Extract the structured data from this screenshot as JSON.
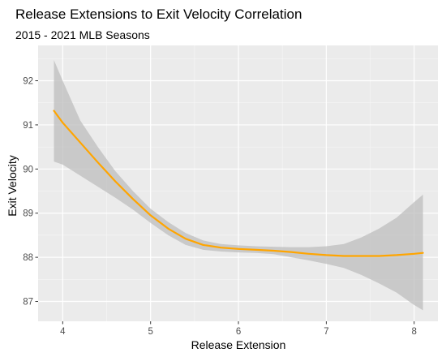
{
  "chart_data": {
    "type": "line",
    "title": "Release Extensions to Exit Velocity Correlation",
    "subtitle": "2015 - 2021 MLB Seasons",
    "xlabel": "Release Extension",
    "ylabel": "Exit Velocity",
    "xlim": [
      3.72,
      8.27
    ],
    "ylim": [
      86.55,
      92.8
    ],
    "x_ticks": [
      4,
      5,
      6,
      7,
      8
    ],
    "y_ticks": [
      87,
      88,
      89,
      90,
      91,
      92
    ],
    "x_minor_ticks": [
      4.5,
      5.5,
      6.5,
      7.5
    ],
    "y_minor_ticks": [
      87.5,
      88.5,
      89.5,
      90.5,
      91.5,
      92.5
    ],
    "grid": true,
    "series": [
      {
        "kind": "smooth-fit-with-confidence-band",
        "color": "#FFA500",
        "band_color": "#BEBEBE",
        "x": [
          3.9,
          4.0,
          4.2,
          4.4,
          4.6,
          4.8,
          5.0,
          5.2,
          5.4,
          5.6,
          5.8,
          6.0,
          6.2,
          6.4,
          6.6,
          6.8,
          7.0,
          7.2,
          7.4,
          7.6,
          7.8,
          8.0,
          8.1
        ],
        "y": [
          91.32,
          91.05,
          90.6,
          90.15,
          89.72,
          89.32,
          88.95,
          88.65,
          88.42,
          88.28,
          88.22,
          88.19,
          88.17,
          88.15,
          88.12,
          88.08,
          88.05,
          88.03,
          88.03,
          88.03,
          88.05,
          88.08,
          88.1
        ],
        "upper": [
          92.47,
          92.0,
          91.1,
          90.5,
          89.95,
          89.5,
          89.1,
          88.8,
          88.55,
          88.38,
          88.3,
          88.27,
          88.25,
          88.24,
          88.23,
          88.23,
          88.25,
          88.3,
          88.45,
          88.65,
          88.9,
          89.25,
          89.42
        ],
        "lower": [
          90.17,
          90.1,
          89.85,
          89.6,
          89.35,
          89.08,
          88.78,
          88.5,
          88.28,
          88.17,
          88.13,
          88.11,
          88.1,
          88.07,
          88.0,
          87.93,
          87.85,
          87.76,
          87.6,
          87.41,
          87.2,
          86.92,
          86.8
        ]
      }
    ]
  }
}
